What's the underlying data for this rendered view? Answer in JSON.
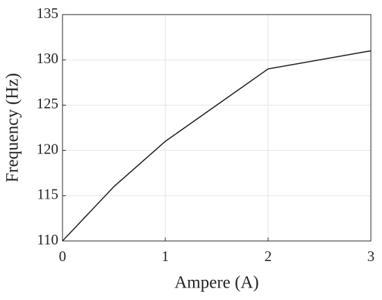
{
  "chart_data": {
    "type": "line",
    "x": [
      0,
      0.5,
      1,
      2,
      3
    ],
    "values": [
      110,
      116,
      121,
      129,
      131
    ],
    "color": "#222222",
    "xlabel": "Ampere (A)",
    "ylabel": "Frequency (Hz)",
    "xlim": [
      0,
      3
    ],
    "xticks": [
      0,
      1,
      2,
      3
    ],
    "ylim": [
      110,
      135
    ],
    "yticks": [
      110,
      115,
      120,
      125,
      130,
      135
    ],
    "grid": true
  }
}
